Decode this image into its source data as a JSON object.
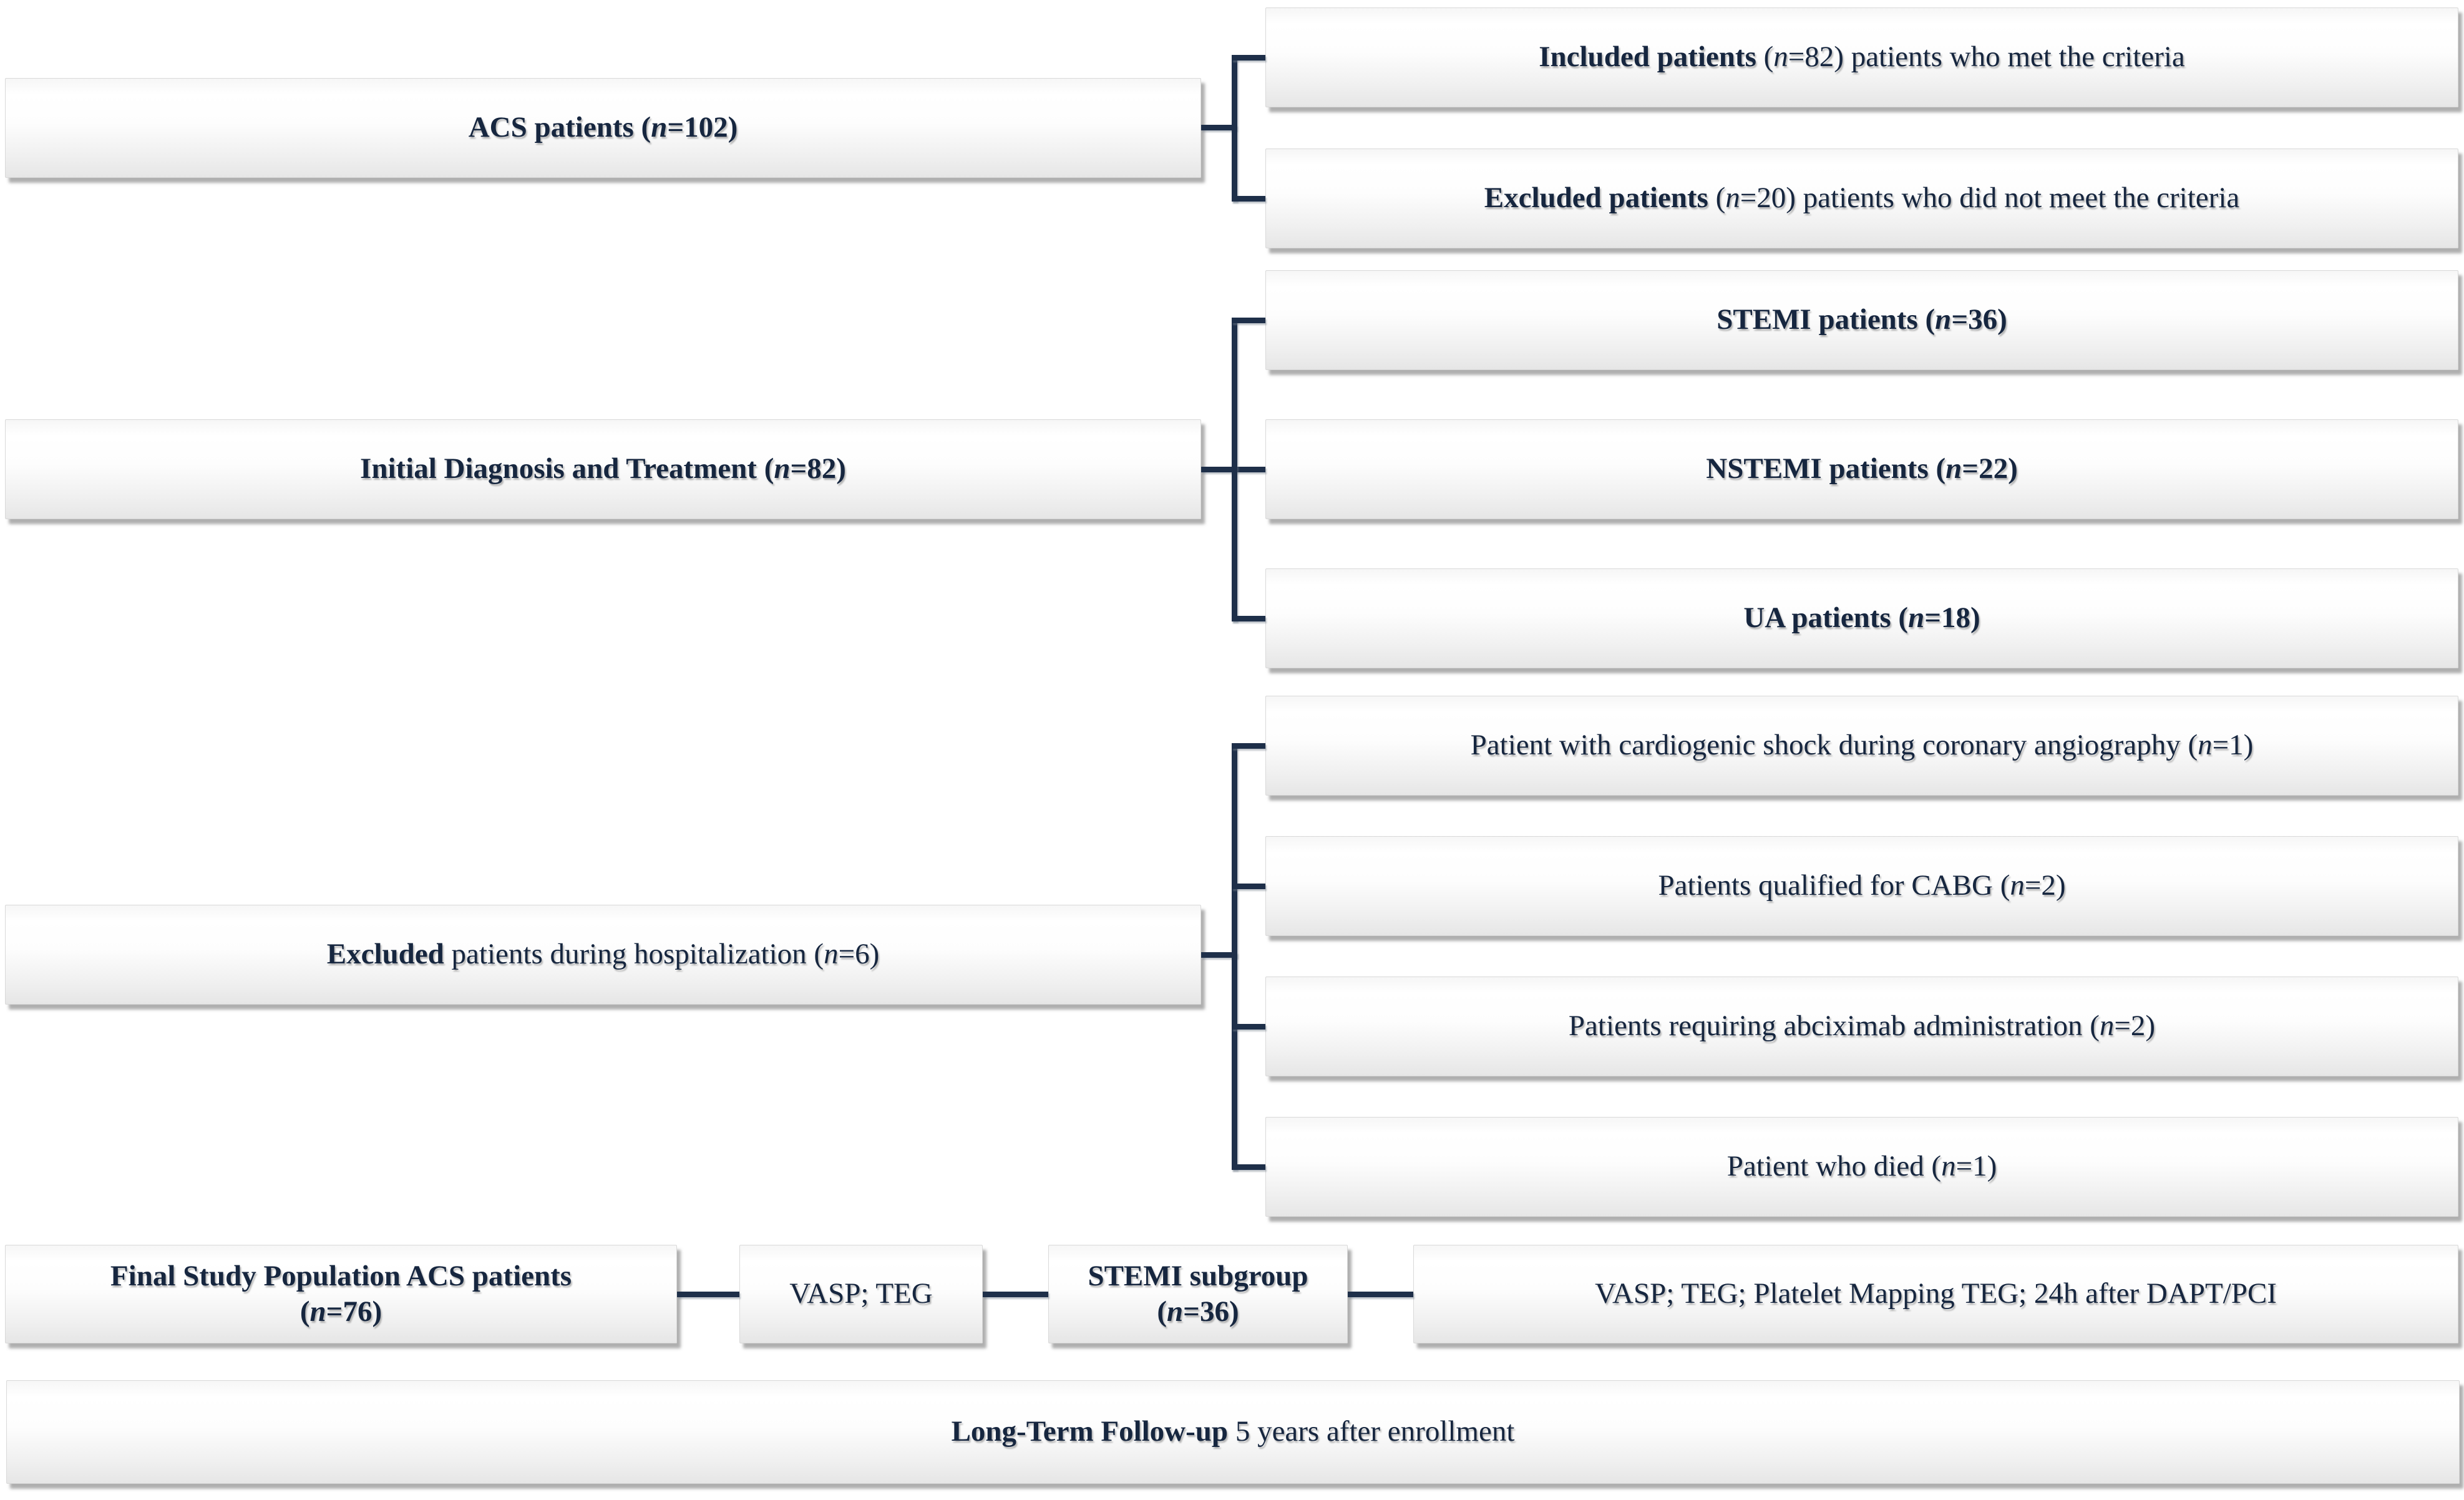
{
  "diagram": {
    "type": "patient-flow-diagram",
    "colors": {
      "text": "#16263f",
      "connector_line": "#1e2f49",
      "box_background_top": "#ffffff",
      "box_background_bottom": "#e6e6e6",
      "box_shadow": "#6e6e6e"
    },
    "boxes": {
      "acs": {
        "label": "ACS patients (n=102)",
        "segments": [
          {
            "t": "ACS patients (",
            "b": true
          },
          {
            "t": "n",
            "b": true,
            "i": true
          },
          {
            "t": "=102)",
            "b": true
          }
        ]
      },
      "included": {
        "label": "Included patients (n=82) patients who met the criteria",
        "segments": [
          {
            "t": "Included patients",
            "b": true
          },
          {
            "t": " ("
          },
          {
            "t": "n",
            "i": true
          },
          {
            "t": "=82) patients who met the criteria"
          }
        ]
      },
      "excluded20": {
        "label": "Excluded patients (n=20) patients who did not meet the criteria",
        "segments": [
          {
            "t": "Excluded patients",
            "b": true
          },
          {
            "t": " ("
          },
          {
            "t": "n",
            "i": true
          },
          {
            "t": "=20) patients who did not meet the criteria"
          }
        ]
      },
      "initial": {
        "label": "Initial Diagnosis and Treatment (n=82)",
        "segments": [
          {
            "t": "Initial Diagnosis and Treatment (",
            "b": true
          },
          {
            "t": "n",
            "b": true,
            "i": true
          },
          {
            "t": "=82)",
            "b": true
          }
        ]
      },
      "stemi": {
        "label": "STEMI patients (n=36)",
        "segments": [
          {
            "t": "STEMI patients (",
            "b": true
          },
          {
            "t": "n",
            "b": true,
            "i": true
          },
          {
            "t": "=36)",
            "b": true
          }
        ]
      },
      "nstemi": {
        "label": "NSTEMI patients (n=22)",
        "segments": [
          {
            "t": "NSTEMI patients (",
            "b": true
          },
          {
            "t": "n",
            "b": true,
            "i": true
          },
          {
            "t": "=22)",
            "b": true
          }
        ]
      },
      "ua": {
        "label": "UA patients (n=18)",
        "segments": [
          {
            "t": "UA patients (",
            "b": true
          },
          {
            "t": "n",
            "b": true,
            "i": true
          },
          {
            "t": "=18)",
            "b": true
          }
        ]
      },
      "excl6": {
        "label": "Excluded patients during hospitalization (n=6)",
        "segments": [
          {
            "t": "Excluded",
            "b": true
          },
          {
            "t": " patients during hospitalization ("
          },
          {
            "t": "n",
            "i": true
          },
          {
            "t": "=6)"
          }
        ]
      },
      "shock": {
        "label": "Patient with cardiogenic shock during coronary angiography (n=1)",
        "segments": [
          {
            "t": "Patient with cardiogenic shock during coronary angiography ("
          },
          {
            "t": "n",
            "i": true
          },
          {
            "t": "=1)"
          }
        ]
      },
      "cabg": {
        "label": "Patients qualified for CABG (n=2)",
        "segments": [
          {
            "t": "Patients qualified for CABG ("
          },
          {
            "t": "n",
            "i": true
          },
          {
            "t": "=2)"
          }
        ]
      },
      "abciximab": {
        "label": "Patients requiring abciximab administration (n=2)",
        "segments": [
          {
            "t": "Patients requiring abciximab administration ("
          },
          {
            "t": "n",
            "i": true
          },
          {
            "t": "=2)"
          }
        ]
      },
      "died": {
        "label": "Patient who died (n=1)",
        "segments": [
          {
            "t": "Patient who died ("
          },
          {
            "t": "n",
            "i": true
          },
          {
            "t": "=1)"
          }
        ]
      },
      "final": {
        "label": "Final Study Population ACS patients (n=76)",
        "segments": [
          {
            "t": "Final Study Population ACS patients",
            "b": true
          },
          {
            "br": true
          },
          {
            "t": "(",
            "b": true
          },
          {
            "t": "n",
            "b": true,
            "i": true
          },
          {
            "t": "=76)",
            "b": true
          }
        ]
      },
      "vasp_teg": {
        "label": "VASP; TEG",
        "segments": [
          {
            "t": "VASP; TEG"
          }
        ]
      },
      "stemi_subgroup": {
        "label": "STEMI subgroup (n=36)",
        "segments": [
          {
            "t": "STEMI subgroup",
            "b": true
          },
          {
            "br": true
          },
          {
            "t": "(",
            "b": true
          },
          {
            "t": "n",
            "b": true,
            "i": true
          },
          {
            "t": "=36)",
            "b": true
          }
        ]
      },
      "vasp_teg_pm": {
        "label": "VASP; TEG; Platelet Mapping TEG; 24h after DAPT/PCI",
        "segments": [
          {
            "t": "VASP; TEG; Platelet Mapping TEG; 24h after DAPT/PCI"
          }
        ]
      },
      "longterm": {
        "label": "Long-Term Follow-up 5 years after enrollment",
        "segments": [
          {
            "t": "Long-Term Follow-up",
            "b": true
          },
          {
            "t": " 5 years after enrollment"
          }
        ]
      }
    }
  }
}
